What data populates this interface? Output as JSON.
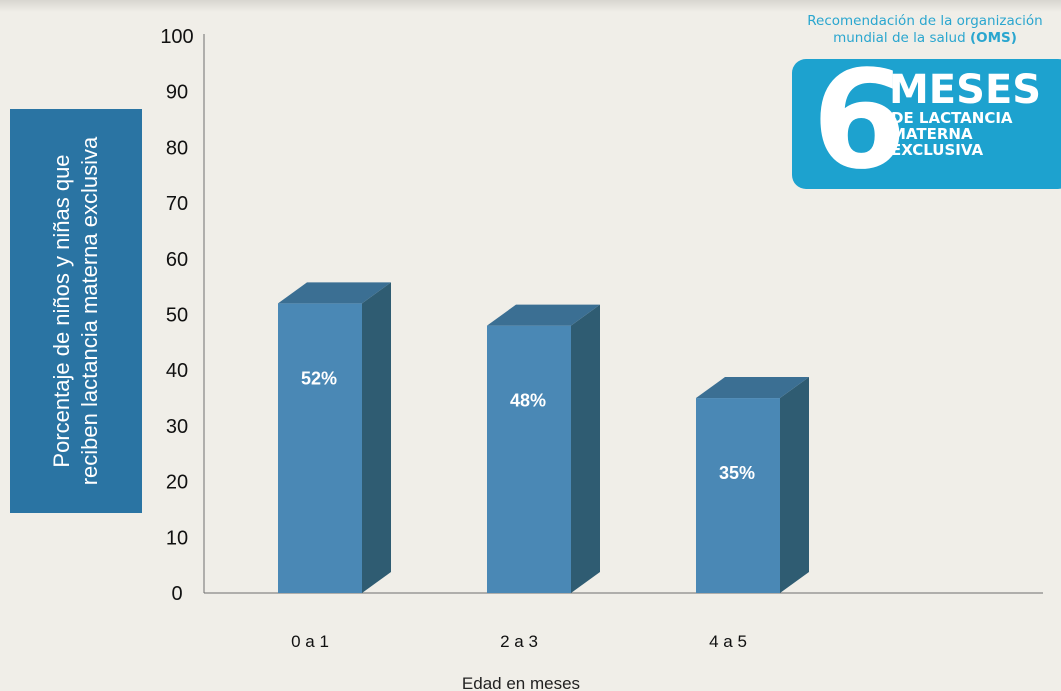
{
  "chart_data": {
    "type": "bar",
    "categories": [
      "0 a 1",
      "2 a 3",
      "4 a 5"
    ],
    "values": [
      52,
      48,
      35
    ],
    "value_labels": [
      "52%",
      "48%",
      "35%"
    ],
    "title": "",
    "xlabel": "Edad en meses",
    "ylabel": "Porcentaje de niños y niñas que reciben lactancia materna exclusiva",
    "ylim": [
      0,
      100
    ],
    "yticks": [
      0,
      10,
      20,
      30,
      40,
      50,
      60,
      70,
      80,
      90,
      100
    ],
    "grid": false,
    "legend": "none",
    "colors": {
      "bar_front": "#4a88b5",
      "bar_side": "#2f5c72",
      "bar_top": "#3b6f93",
      "label_box": "#2a74a3",
      "badge": "#1da2cf"
    }
  },
  "oms": {
    "caption_line1": "Recomendación de la organización",
    "caption_line2_prefix": "mundial de la salud",
    "caption_line2_bold": "(OMS)",
    "number": "6",
    "big_word": "MESES",
    "line1": "DE LACTANCIA",
    "line2": "MATERNA",
    "line3": "EXCLUSIVA"
  }
}
